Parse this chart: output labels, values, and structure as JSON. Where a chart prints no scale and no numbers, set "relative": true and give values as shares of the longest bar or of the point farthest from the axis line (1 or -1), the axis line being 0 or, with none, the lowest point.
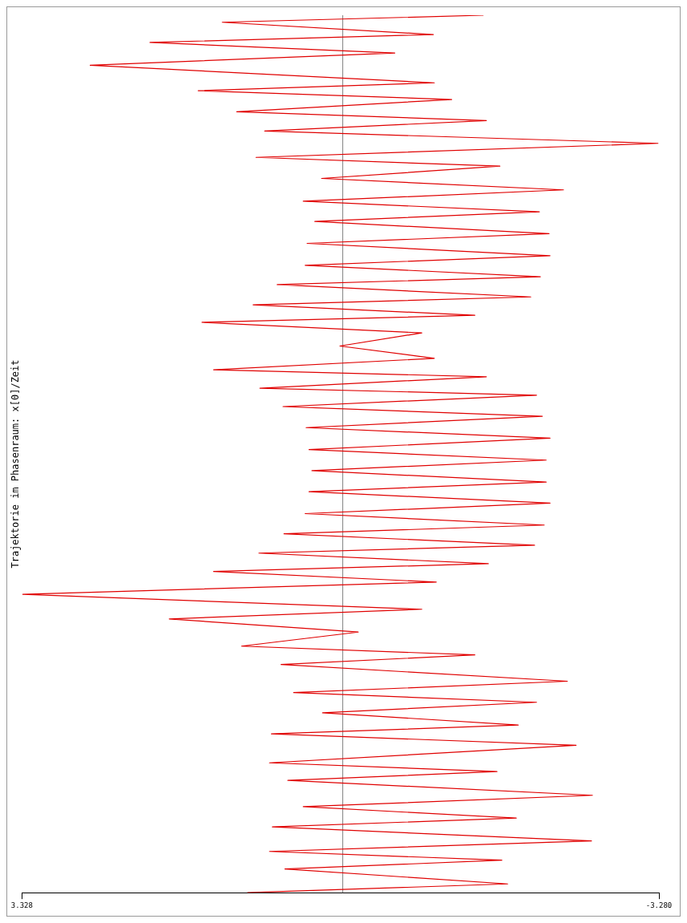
{
  "chart_data": {
    "type": "line",
    "title": "Trajektorie im Phasenraum: x[0]/Zeit",
    "relative": true,
    "series": [
      {
        "color": "#e00000",
        "x": [
          0.99,
          -1.71,
          0.6,
          -1.65,
          0.76,
          -2.58,
          0.73,
          -1.8,
          0.41,
          -2.59,
          0.57,
          -1.6,
          0.76,
          -2.42,
          0.74,
          -1.82,
          0.21,
          -2.01,
          0.51,
          -2.33,
          0.64,
          -1.37,
          1.05,
          -0.16,
          1.8,
          -0.82,
          3.32,
          -0.97,
          1.34,
          -1.51,
          0.87,
          -1.99,
          0.61,
          -2.09,
          0.39,
          -2.15,
          0.35,
          -2.11,
          0.32,
          -2.11,
          0.35,
          -2.15,
          0.38,
          -2.07,
          0.62,
          -2.01,
          0.86,
          -1.49,
          1.34,
          -0.95,
          0.03,
          -0.82,
          1.46,
          -1.37,
          0.93,
          -1.95,
          0.68,
          -2.05,
          0.39,
          -2.15,
          0.37,
          -2.14,
          0.29,
          -2.04,
          0.41,
          -2.29,
          0.22,
          -1.63,
          0.9,
          -3.27,
          0.81,
          -1.49,
          1.1,
          -1.13,
          1.5,
          -0.95,
          2.62,
          -0.54,
          2.0,
          -0.94,
          1.25,
          -1.46
        ],
        "values": [
          0,
          0.01,
          0.027,
          0.037,
          0.047,
          0.059,
          0.075,
          0.085,
          0.098,
          0.111,
          0.128,
          0.138,
          0.148,
          0.168,
          0.181,
          0.191,
          0.205,
          0.217,
          0.228,
          0.241,
          0.26,
          0.271,
          0.281,
          0.297,
          0.312,
          0.323,
          0.34,
          0.354,
          0.366,
          0.375,
          0.387,
          0.396,
          0.409,
          0.419,
          0.432,
          0.444,
          0.457,
          0.468,
          0.481,
          0.493,
          0.505,
          0.518,
          0.53,
          0.543,
          0.554,
          0.567,
          0.575,
          0.588,
          0.596,
          0.609,
          0.623,
          0.638,
          0.65,
          0.658,
          0.67,
          0.679,
          0.693,
          0.702,
          0.715,
          0.726,
          0.74,
          0.751,
          0.765,
          0.776,
          0.788,
          0.801,
          0.814,
          0.828,
          0.838,
          0.854,
          0.868,
          0.88,
          0.89,
          0.904,
          0.914,
          0.923,
          0.943,
          0.957,
          0.969,
          0.978,
          0.992,
          1
        ]
      }
    ],
    "xlim": [
      3.328,
      -3.28
    ],
    "xticks": [
      3.328,
      {
        "value": -3.28,
        "label": "-3.280"
      }
    ],
    "tick_labels": "x",
    "grid": false,
    "legend": false,
    "ref_lines": [
      {
        "axis": "x",
        "value": 0,
        "color": "#808080"
      }
    ]
  }
}
